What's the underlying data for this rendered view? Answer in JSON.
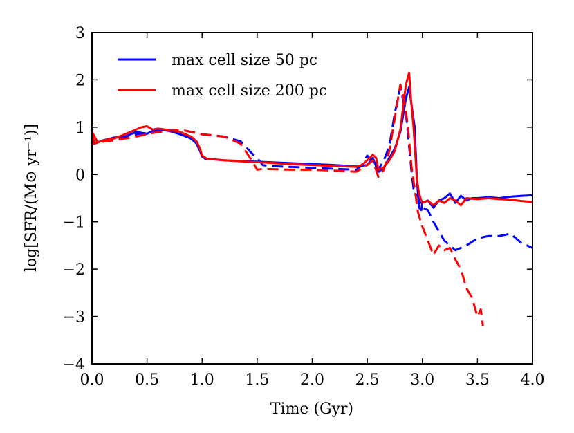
{
  "chart_data": {
    "type": "line",
    "title": "",
    "xlabel": "Time (Gyr)",
    "ylabel": "log[SFR/(M⊙ yr⁻¹)]",
    "xlim": [
      0.0,
      4.0
    ],
    "ylim": [
      -4,
      3
    ],
    "xticks": [
      "0.0",
      "0.5",
      "1.0",
      "1.5",
      "2.0",
      "2.5",
      "3.0",
      "3.5",
      "4.0"
    ],
    "yticks": [
      "−4",
      "−3",
      "−2",
      "−1",
      "0",
      "1",
      "2",
      "3"
    ],
    "grid": false,
    "legend_position": "top-left",
    "legend": [
      {
        "label": "max cell size 50 pc",
        "color": "#0000ff"
      },
      {
        "label": "max cell size 200 pc",
        "color": "#ff0000"
      }
    ],
    "series": [
      {
        "name": "max cell size 50 pc",
        "color": "#0000ff",
        "dash": "solid",
        "x": [
          0.0,
          0.02,
          0.1,
          0.2,
          0.3,
          0.4,
          0.5,
          0.55,
          0.6,
          0.7,
          0.8,
          0.9,
          0.95,
          0.98,
          1.0,
          1.03,
          1.05,
          1.1,
          1.2,
          1.4,
          1.6,
          1.8,
          2.0,
          2.2,
          2.4,
          2.5,
          2.55,
          2.6,
          2.65,
          2.7,
          2.75,
          2.8,
          2.85,
          2.88,
          2.9,
          2.93,
          2.95,
          2.97,
          2.99,
          3.0,
          3.05,
          3.1,
          3.15,
          3.2,
          3.25,
          3.3,
          3.35,
          3.4,
          3.45,
          3.5,
          3.6,
          3.7,
          3.8,
          3.9,
          4.0
        ],
        "y": [
          0.9,
          0.65,
          0.72,
          0.78,
          0.8,
          0.9,
          0.86,
          0.92,
          0.95,
          0.92,
          0.85,
          0.76,
          0.65,
          0.5,
          0.38,
          0.33,
          0.33,
          0.32,
          0.3,
          0.28,
          0.26,
          0.24,
          0.22,
          0.2,
          0.17,
          0.2,
          0.35,
          0.05,
          0.15,
          0.35,
          0.55,
          0.9,
          1.6,
          1.85,
          1.5,
          1.0,
          -0.1,
          -0.7,
          -0.75,
          -0.6,
          -0.55,
          -0.7,
          -0.55,
          -0.5,
          -0.4,
          -0.6,
          -0.45,
          -0.55,
          -0.5,
          -0.5,
          -0.48,
          -0.5,
          -0.47,
          -0.45,
          -0.44
        ]
      },
      {
        "name": "",
        "color": "#0000ff",
        "dash": "dashed",
        "x": [
          0.0,
          0.05,
          0.2,
          0.4,
          0.6,
          0.8,
          1.0,
          1.2,
          1.35,
          1.45,
          1.5,
          1.55,
          1.6,
          1.8,
          2.0,
          2.2,
          2.4,
          2.45,
          2.5,
          2.55,
          2.6,
          2.65,
          2.7,
          2.75,
          2.8,
          2.85,
          2.88,
          2.9,
          2.92,
          2.95,
          2.98,
          3.0,
          3.05,
          3.1,
          3.2,
          3.3,
          3.4,
          3.5,
          3.6,
          3.7,
          3.8,
          3.9,
          4.0
        ],
        "y": [
          0.9,
          0.68,
          0.75,
          0.85,
          0.9,
          0.95,
          0.85,
          0.8,
          0.7,
          0.45,
          0.35,
          0.2,
          0.18,
          0.16,
          0.14,
          0.12,
          0.1,
          0.2,
          0.4,
          0.25,
          0.1,
          0.3,
          0.6,
          1.3,
          1.85,
          1.3,
          0.6,
          0.1,
          -0.3,
          -0.4,
          -0.6,
          -0.7,
          -0.75,
          -1.0,
          -1.4,
          -1.6,
          -1.5,
          -1.35,
          -1.3,
          -1.3,
          -1.25,
          -1.45,
          -1.55
        ]
      },
      {
        "name": "max cell size 200 pc",
        "color": "#ff0000",
        "dash": "solid",
        "x": [
          0.0,
          0.02,
          0.1,
          0.2,
          0.3,
          0.4,
          0.45,
          0.5,
          0.55,
          0.6,
          0.7,
          0.8,
          0.9,
          0.95,
          0.98,
          1.0,
          1.03,
          1.05,
          1.1,
          1.2,
          1.4,
          1.6,
          1.8,
          2.0,
          2.2,
          2.4,
          2.45,
          2.5,
          2.55,
          2.58,
          2.6,
          2.65,
          2.7,
          2.75,
          2.8,
          2.85,
          2.88,
          2.9,
          2.92,
          2.95,
          2.97,
          2.99,
          3.0,
          3.05,
          3.1,
          3.15,
          3.2,
          3.25,
          3.3,
          3.35,
          3.4,
          3.5,
          3.6,
          3.7,
          3.8,
          3.9,
          4.0
        ],
        "y": [
          0.9,
          0.65,
          0.72,
          0.76,
          0.85,
          0.95,
          1.0,
          1.02,
          0.95,
          0.97,
          0.94,
          0.9,
          0.8,
          0.7,
          0.55,
          0.4,
          0.35,
          0.33,
          0.32,
          0.3,
          0.27,
          0.25,
          0.22,
          0.2,
          0.18,
          0.16,
          0.2,
          0.3,
          0.42,
          0.35,
          0.1,
          0.15,
          0.3,
          0.5,
          0.95,
          1.9,
          2.15,
          1.5,
          1.0,
          -0.1,
          -0.4,
          -0.55,
          -0.6,
          -0.55,
          -0.65,
          -0.55,
          -0.6,
          -0.5,
          -0.55,
          -0.65,
          -0.5,
          -0.52,
          -0.5,
          -0.52,
          -0.53,
          -0.56,
          -0.58
        ]
      },
      {
        "name": "",
        "color": "#ff0000",
        "dash": "dashed",
        "x": [
          0.0,
          0.05,
          0.2,
          0.4,
          0.5,
          0.6,
          0.8,
          1.0,
          1.2,
          1.35,
          1.45,
          1.5,
          1.55,
          1.8,
          2.0,
          2.2,
          2.4,
          2.5,
          2.55,
          2.6,
          2.65,
          2.7,
          2.75,
          2.8,
          2.84,
          2.87,
          2.9,
          2.93,
          2.96,
          3.0,
          3.05,
          3.1,
          3.15,
          3.2,
          3.25,
          3.3,
          3.35,
          3.4,
          3.45,
          3.5,
          3.53,
          3.55
        ],
        "y": [
          0.9,
          0.68,
          0.72,
          0.8,
          0.85,
          0.9,
          0.95,
          0.85,
          0.8,
          0.65,
          0.3,
          0.1,
          0.12,
          0.1,
          0.1,
          0.08,
          0.06,
          0.2,
          0.3,
          -0.05,
          0.1,
          0.5,
          1.2,
          1.9,
          1.5,
          1.0,
          0.2,
          -0.3,
          -0.8,
          -1.1,
          -1.4,
          -1.7,
          -1.5,
          -1.6,
          -1.55,
          -1.8,
          -2.0,
          -2.4,
          -2.6,
          -3.0,
          -2.85,
          -3.2
        ]
      }
    ]
  }
}
